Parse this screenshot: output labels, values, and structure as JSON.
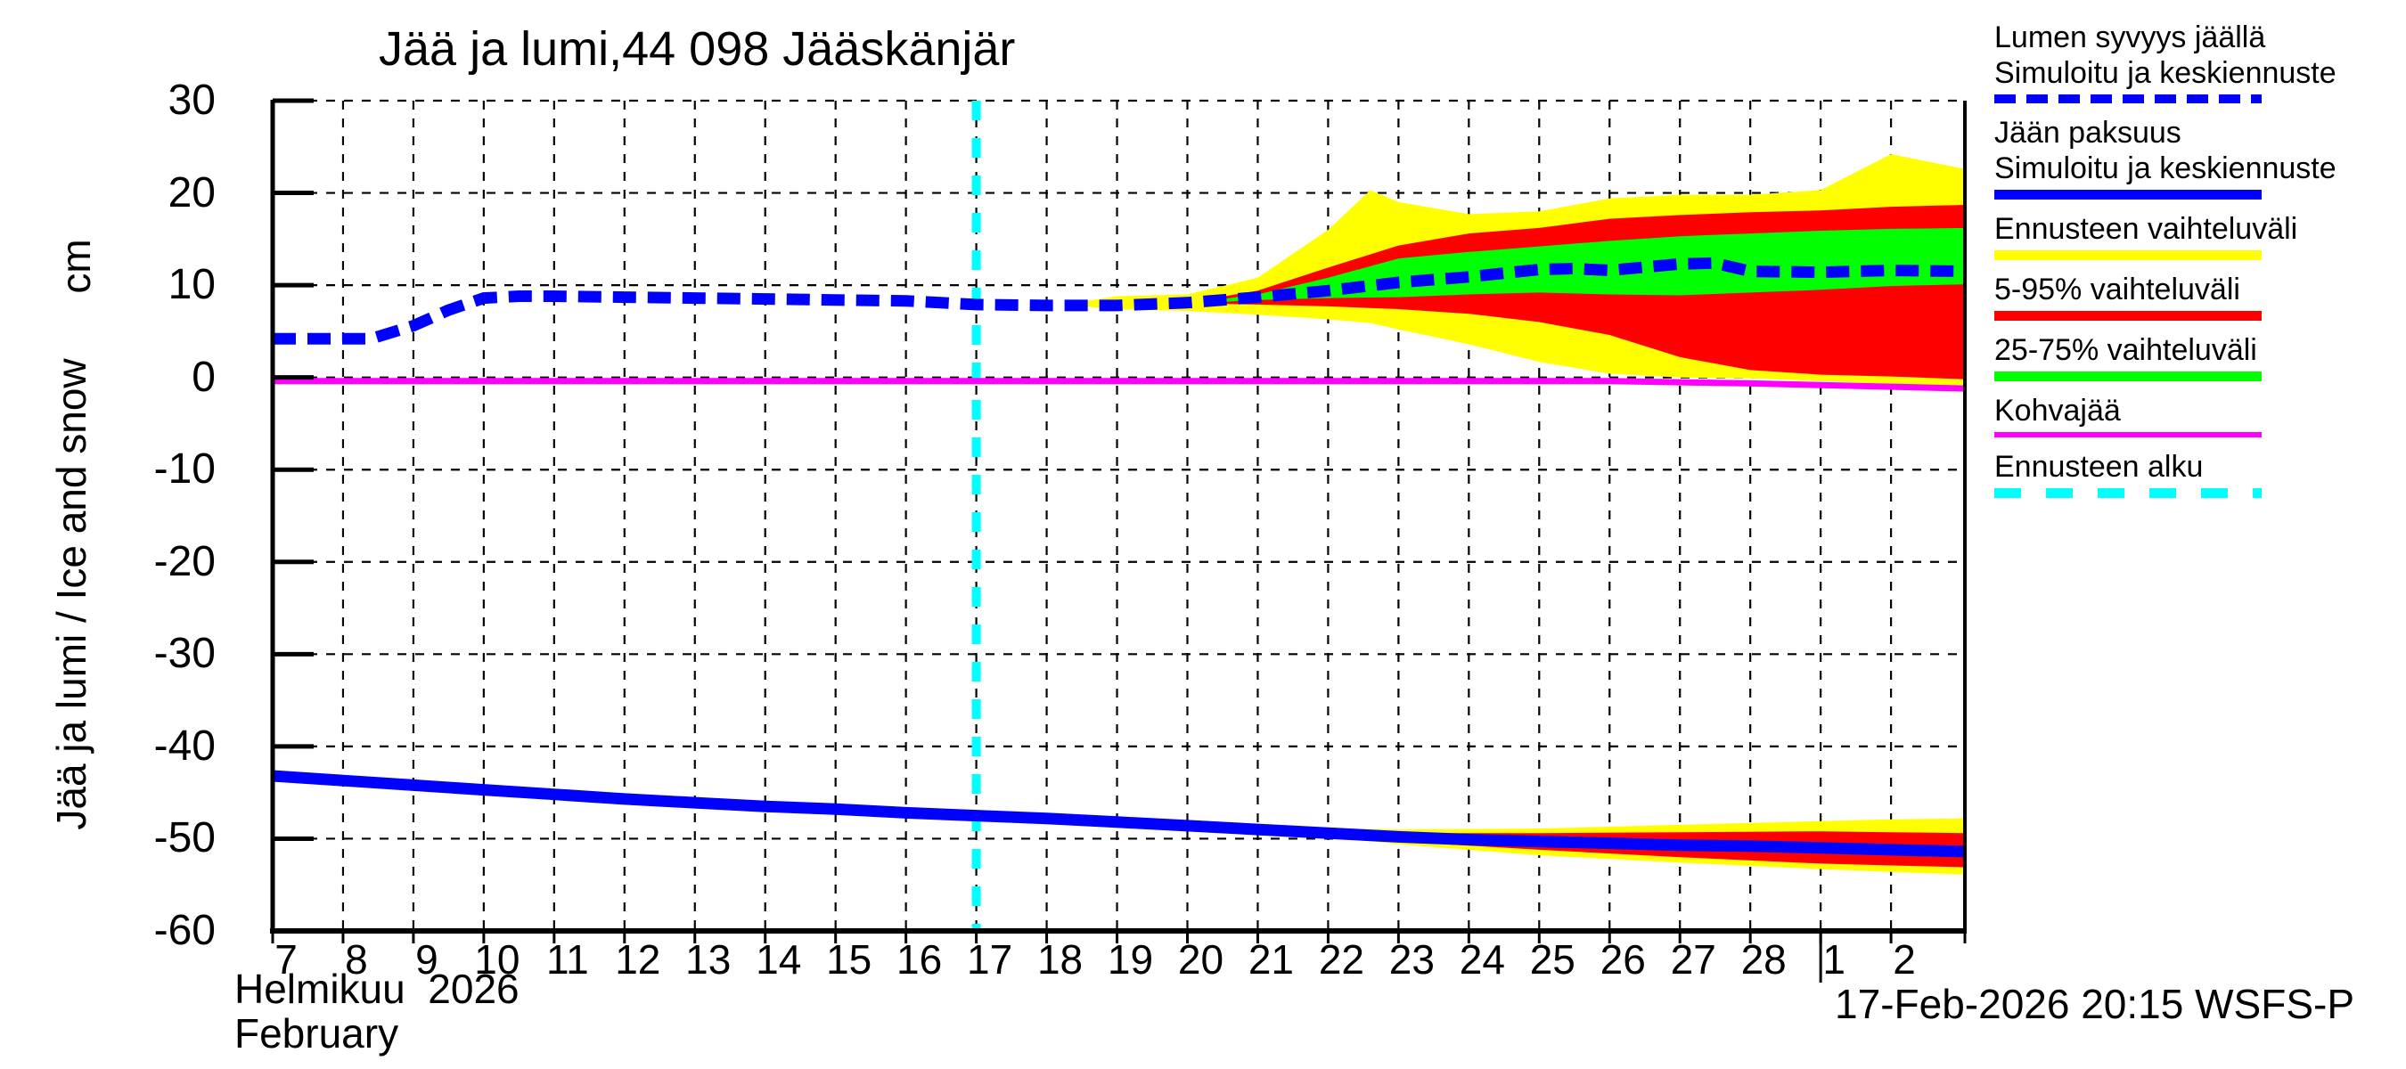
{
  "chart_data": {
    "type": "line",
    "title": "Jää ja lumi,44 098 Jääskänjär",
    "ylabel": "Jää ja lumi / Ice and snow",
    "unit": "cm",
    "ylim": [
      -60,
      30
    ],
    "yticks": [
      30,
      20,
      10,
      0,
      -10,
      -20,
      -30,
      -40,
      -50,
      -60
    ],
    "x_day_labels": [
      "7",
      "8",
      "9",
      "10",
      "11",
      "12",
      "13",
      "14",
      "15",
      "16",
      "17",
      "18",
      "19",
      "20",
      "21",
      "22",
      "23",
      "24",
      "25",
      "26",
      "27",
      "28",
      "1",
      "2"
    ],
    "xlim_days": [
      7,
      31.05
    ],
    "month_boundary_x": 29,
    "forecast_start_x": 17,
    "month_fi": "Helmikuu  2026",
    "month_en": "February",
    "timestamp": "17-Feb-2026 20:15 WSFS-P",
    "grid": true,
    "legend_position": "outside-right",
    "colors": {
      "blue": "#0000ff",
      "yellow": "#ffff00",
      "red": "#ff0000",
      "green": "#00ff00",
      "magenta": "#ff00ff",
      "cyan": "#00ffff",
      "axis": "#000000",
      "background": "#ffffff"
    },
    "legend": [
      {
        "name": "snow-depth-on-ice",
        "lines": [
          "Lumen syvyys jäällä",
          "Simuloitu ja keskiennuste"
        ],
        "style": "dashed",
        "color_key": "blue"
      },
      {
        "name": "ice-thickness",
        "lines": [
          "Jään paksuus",
          "Simuloitu ja keskiennuste"
        ],
        "style": "solid",
        "color_key": "blue"
      },
      {
        "name": "forecast-range",
        "lines": [
          "Ennusteen vaihteluväli"
        ],
        "style": "solid",
        "color_key": "yellow"
      },
      {
        "name": "range-5-95",
        "lines": [
          "5-95% vaihteluväli"
        ],
        "style": "solid",
        "color_key": "red"
      },
      {
        "name": "range-25-75",
        "lines": [
          "25-75% vaihteluväli"
        ],
        "style": "solid",
        "color_key": "green"
      },
      {
        "name": "kohvajaa",
        "lines": [
          "Kohvajää"
        ],
        "style": "thin",
        "color_key": "magenta"
      },
      {
        "name": "forecast-start",
        "lines": [
          "Ennusteen alku"
        ],
        "style": "dashed-wide",
        "color_key": "cyan"
      }
    ],
    "series": {
      "snow_depth_median": {
        "label": "Lumen syvyys jäällä / Simuloitu ja keskiennuste",
        "t": [
          7,
          8.4,
          9,
          9.5,
          10,
          10.5,
          11,
          12,
          13,
          14,
          15,
          16,
          17,
          18,
          19,
          20,
          21,
          22,
          23,
          24,
          25,
          25.5,
          26,
          27,
          27.5,
          28,
          29,
          30,
          31.05
        ],
        "v": [
          4.2,
          4.2,
          5.6,
          7.3,
          8.6,
          8.8,
          8.8,
          8.7,
          8.6,
          8.5,
          8.4,
          8.3,
          7.9,
          7.8,
          7.8,
          8.1,
          8.7,
          9.4,
          10.3,
          10.9,
          11.7,
          11.8,
          11.6,
          12.3,
          12.4,
          11.5,
          11.4,
          11.6,
          11.5
        ]
      },
      "snow_range_minmax": {
        "label": "Ennusteen vaihteluväli",
        "t": [
          18.5,
          19,
          20,
          21,
          22,
          22.6,
          23,
          24,
          25,
          26,
          27,
          28,
          29,
          30,
          31.05
        ],
        "top": [
          8.2,
          8.8,
          9.0,
          10.8,
          16.0,
          20.3,
          19.0,
          17.7,
          18.0,
          19.4,
          19.8,
          19.8,
          20.3,
          24.2,
          22.6
        ],
        "bottom": [
          7.7,
          7.4,
          7.2,
          6.8,
          6.3,
          5.9,
          5.2,
          3.6,
          1.7,
          0.4,
          0.0,
          -0.1,
          -0.4,
          -0.7,
          -1.0
        ]
      },
      "snow_range_5_95": {
        "label": "5-95% vaihteluväli",
        "t": [
          20.3,
          21,
          22,
          23,
          24,
          25,
          26,
          27,
          28,
          29,
          30,
          31.05
        ],
        "top": [
          8.5,
          9.4,
          11.9,
          14.3,
          15.6,
          16.2,
          17.2,
          17.6,
          17.9,
          18.1,
          18.5,
          18.7
        ],
        "bottom": [
          8.0,
          7.9,
          7.7,
          7.4,
          6.9,
          6.0,
          4.6,
          2.2,
          0.8,
          0.3,
          0.1,
          -0.2
        ]
      },
      "snow_range_25_75": {
        "label": "25-75% vaihteluväli",
        "t": [
          20.3,
          21,
          22,
          23,
          24,
          25,
          26,
          27,
          28,
          29,
          30,
          31.05
        ],
        "top": [
          8.3,
          9.0,
          10.8,
          12.9,
          13.6,
          14.2,
          14.8,
          15.3,
          15.6,
          15.9,
          16.1,
          16.2
        ],
        "bottom": [
          8.1,
          8.4,
          8.6,
          8.7,
          9.0,
          9.2,
          9.0,
          8.9,
          9.2,
          9.5,
          9.9,
          10.1
        ]
      },
      "ice_thickness_median": {
        "label": "Jään paksuus / Simuloitu ja keskiennuste",
        "t": [
          7,
          8,
          9,
          10,
          11,
          12,
          13,
          14,
          15,
          16,
          17,
          18,
          19,
          20,
          21,
          22,
          23,
          24,
          25,
          26,
          27,
          28,
          29,
          30,
          31.05
        ],
        "v": [
          -43.2,
          -43.7,
          -44.2,
          -44.7,
          -45.2,
          -45.7,
          -46.1,
          -46.5,
          -46.8,
          -47.2,
          -47.5,
          -47.8,
          -48.2,
          -48.6,
          -49.0,
          -49.4,
          -49.8,
          -50.1,
          -50.3,
          -50.5,
          -50.7,
          -50.8,
          -51.0,
          -51.2,
          -51.4
        ]
      },
      "ice_range_minmax": {
        "label": "Ennusteen vaihteluväli",
        "t": [
          21.5,
          23,
          25,
          27,
          29,
          30,
          31.05
        ],
        "top": [
          -48.8,
          -49.0,
          -48.9,
          -48.5,
          -48.1,
          -47.9,
          -47.8
        ],
        "bottom": [
          -49.4,
          -50.6,
          -51.8,
          -52.6,
          -53.3,
          -53.6,
          -53.9
        ]
      },
      "ice_range_5_95": {
        "label": "5-95% vaihteluväli",
        "t": [
          22.3,
          23,
          25,
          27,
          29,
          30,
          31.05
        ],
        "top": [
          -49.3,
          -49.4,
          -49.4,
          -49.3,
          -49.2,
          -49.3,
          -49.4
        ],
        "bottom": [
          -50.0,
          -50.3,
          -51.2,
          -52.0,
          -52.7,
          -52.9,
          -53.1
        ]
      },
      "kohvajaa_line": {
        "label": "Kohvajää",
        "t": [
          7,
          26,
          28,
          31.05
        ],
        "v": [
          -0.4,
          -0.4,
          -0.65,
          -1.2
        ]
      }
    }
  }
}
